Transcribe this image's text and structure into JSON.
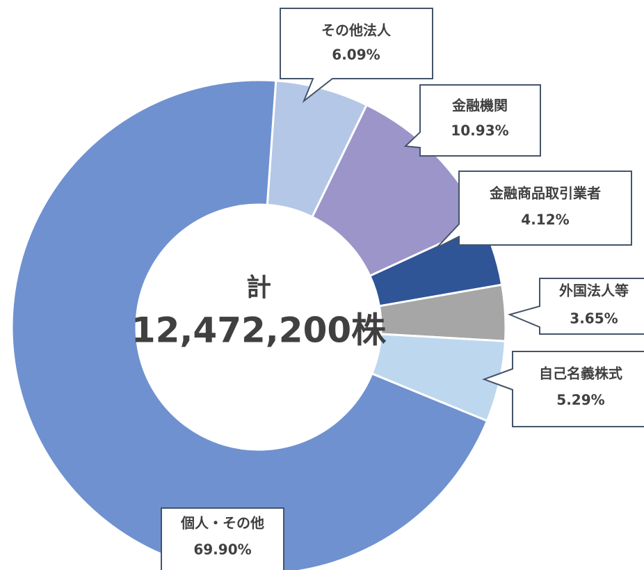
{
  "chart_data": {
    "type": "donut",
    "categories": [
      "その他法人",
      "金融機関",
      "金融商品取引業者",
      "外国法人等",
      "自己名義株式",
      "個人・その他"
    ],
    "values": [
      6.09,
      10.93,
      4.12,
      3.65,
      5.29,
      69.9
    ],
    "value_labels": [
      "6.09%",
      "10.93%",
      "4.12%",
      "3.65%",
      "5.29%",
      "69.90%"
    ],
    "colors": [
      "#b4c7e7",
      "#9b95c9",
      "#2f5597",
      "#a6a6a6",
      "#bdd7ee",
      "#6f91d0"
    ],
    "center_text": [
      "計",
      "12,472,200株"
    ]
  }
}
